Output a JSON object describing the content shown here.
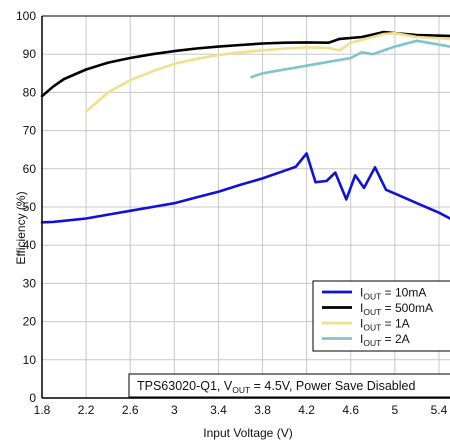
{
  "chart_data": {
    "type": "line",
    "title": "",
    "xlabel": "Input Voltage (V)",
    "ylabel": "Efficiency (%)",
    "xlim": [
      1.8,
      5.5
    ],
    "ylim": [
      0,
      100
    ],
    "xticks": [
      "1.8",
      "2.2",
      "2.6",
      "3",
      "3.4",
      "3.8",
      "4.2",
      "4.6",
      "5",
      "5.4"
    ],
    "yticks": [
      "0",
      "10",
      "20",
      "30",
      "40",
      "50",
      "60",
      "70",
      "80",
      "90",
      "100"
    ],
    "grid": true,
    "legend_position": "bottom-right",
    "annotation": {
      "prefix": "TPS63020-Q1, V",
      "sub": "OUT",
      "suffix": " = 4.5V, Power Save Disabled"
    },
    "series": [
      {
        "name": "I_OUT = 10mA",
        "legend_main": "I",
        "legend_sub": "OUT",
        "legend_suffix": " = 10mA",
        "color": "#1010dd",
        "x": [
          1.8,
          1.9,
          2.0,
          2.2,
          2.4,
          2.6,
          2.8,
          3.0,
          3.2,
          3.4,
          3.6,
          3.8,
          4.0,
          4.1,
          4.2,
          4.28,
          4.38,
          4.46,
          4.56,
          4.64,
          4.72,
          4.82,
          4.92,
          5.0,
          5.2,
          5.4,
          5.5
        ],
        "y": [
          46,
          46.1,
          46.4,
          47,
          48,
          49,
          50,
          51,
          52.5,
          54,
          55.8,
          57.5,
          59.5,
          60.5,
          64,
          56.5,
          56.8,
          59,
          52,
          58.3,
          55,
          60.4,
          54.5,
          53.5,
          51,
          48.5,
          47
        ]
      },
      {
        "name": "I_OUT = 500mA",
        "legend_main": "I",
        "legend_sub": "OUT",
        "legend_suffix": " = 500mA",
        "color": "#000000",
        "x": [
          1.8,
          1.9,
          2.0,
          2.2,
          2.4,
          2.6,
          2.8,
          3.0,
          3.2,
          3.4,
          3.6,
          3.8,
          4.0,
          4.2,
          4.4,
          4.5,
          4.7,
          4.9,
          5.0,
          5.2,
          5.5
        ],
        "y": [
          79,
          81.5,
          83.5,
          86,
          87.8,
          89,
          90,
          90.8,
          91.5,
          92,
          92.4,
          92.8,
          93,
          93.1,
          93,
          94,
          94.5,
          95.8,
          95.5,
          95,
          94.8
        ]
      },
      {
        "name": "I_OUT = 1A",
        "legend_main": "I",
        "legend_sub": "OUT",
        "legend_suffix": " = 1A",
        "color": "#f0df8c",
        "x": [
          2.2,
          2.4,
          2.6,
          2.8,
          3.0,
          3.2,
          3.4,
          3.6,
          3.8,
          4.0,
          4.2,
          4.4,
          4.5,
          4.6,
          4.8,
          4.9,
          5.0,
          5.2,
          5.5
        ],
        "y": [
          75,
          80,
          83.2,
          85.5,
          87.5,
          88.8,
          89.8,
          90.5,
          91,
          91.5,
          91.8,
          91.6,
          91,
          93,
          94.5,
          95.3,
          95.5,
          94.5,
          94
        ]
      },
      {
        "name": "I_OUT = 2A",
        "legend_main": "I",
        "legend_sub": "OUT",
        "legend_suffix": " = 2A",
        "color": "#7ec4cf",
        "x": [
          3.7,
          3.8,
          4.0,
          4.2,
          4.4,
          4.6,
          4.7,
          4.8,
          4.9,
          5.0,
          5.2,
          5.3,
          5.4,
          5.5
        ],
        "y": [
          84,
          85,
          86,
          87,
          88,
          89,
          90.5,
          90,
          91,
          92,
          93.5,
          93,
          92.5,
          92
        ]
      }
    ]
  }
}
